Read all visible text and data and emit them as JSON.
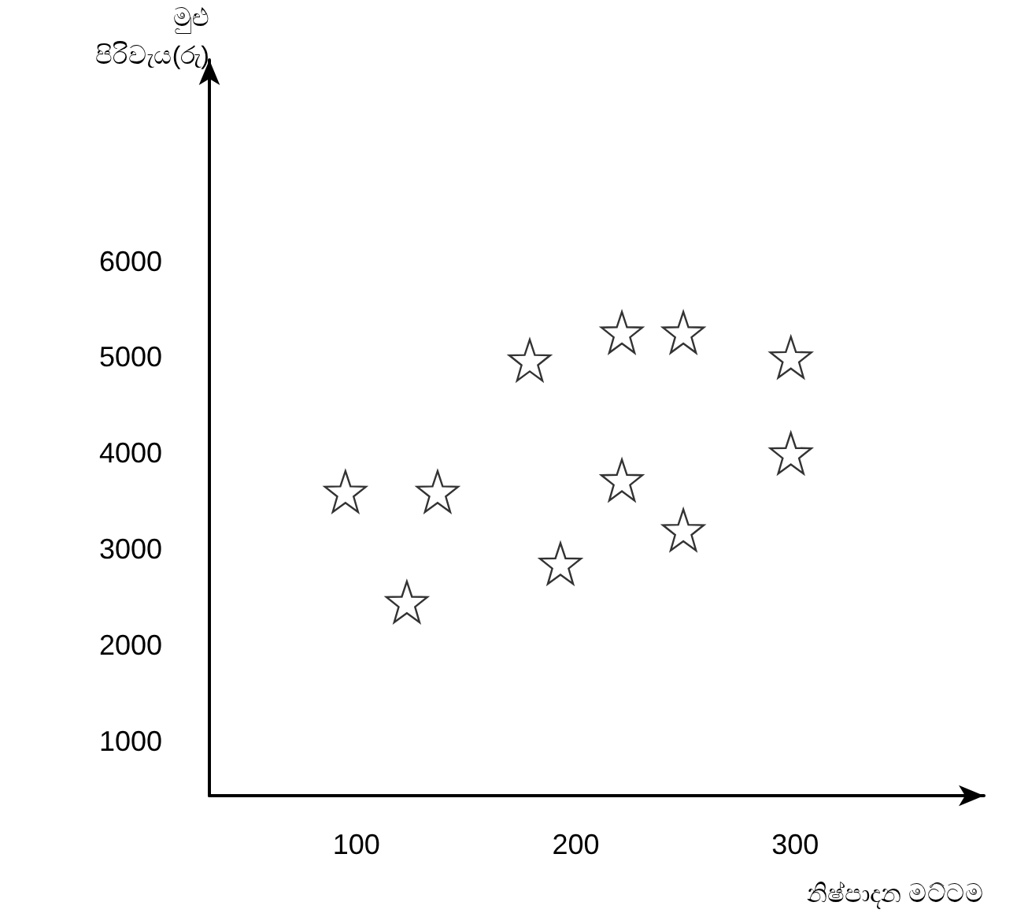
{
  "chart_data": {
    "type": "scatter",
    "xlabel": "නිෂ්පාදන මට්ටම",
    "ylabel": "මුළු පිරිවැය(රු)",
    "x": [
      95,
      123,
      137,
      179,
      193,
      221,
      221,
      249,
      249,
      298,
      298
    ],
    "series": [
      {
        "color": "#000000",
        "values": [
          3600,
          2450,
          3600,
          4970,
          2850,
          5260,
          3720,
          5260,
          3200,
          5000,
          4000
        ]
      }
    ],
    "xlim": [
      33,
      386
    ],
    "xticks": [
      100,
      200,
      300
    ],
    "ylim": [
      430,
      8100
    ],
    "yticks": [
      1000,
      2000,
      3000,
      4000,
      5000,
      6000
    ],
    "grid": false,
    "marker": "star"
  }
}
